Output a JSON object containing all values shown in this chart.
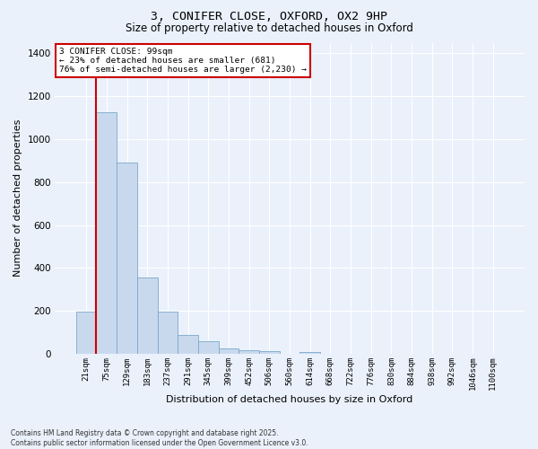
{
  "title_line1": "3, CONIFER CLOSE, OXFORD, OX2 9HP",
  "title_line2": "Size of property relative to detached houses in Oxford",
  "xlabel": "Distribution of detached houses by size in Oxford",
  "ylabel": "Number of detached properties",
  "categories": [
    "21sqm",
    "75sqm",
    "129sqm",
    "183sqm",
    "237sqm",
    "291sqm",
    "345sqm",
    "399sqm",
    "452sqm",
    "506sqm",
    "560sqm",
    "614sqm",
    "668sqm",
    "722sqm",
    "776sqm",
    "830sqm",
    "884sqm",
    "938sqm",
    "992sqm",
    "1046sqm",
    "1100sqm"
  ],
  "values": [
    195,
    1125,
    890,
    355,
    198,
    90,
    57,
    25,
    18,
    12,
    0,
    10,
    0,
    0,
    0,
    0,
    0,
    0,
    0,
    0,
    0
  ],
  "bar_color": "#c9d9ed",
  "bar_edge_color": "#7aa8cc",
  "property_line_color": "#cc0000",
  "property_line_x": 0.5,
  "annotation_text": "3 CONIFER CLOSE: 99sqm\n← 23% of detached houses are smaller (681)\n76% of semi-detached houses are larger (2,230) →",
  "annotation_box_color": "#cc0000",
  "ylim": [
    0,
    1450
  ],
  "yticks": [
    0,
    200,
    400,
    600,
    800,
    1000,
    1200,
    1400
  ],
  "bg_color": "#eaf1fb",
  "footer_text": "Contains HM Land Registry data © Crown copyright and database right 2025.\nContains public sector information licensed under the Open Government Licence v3.0.",
  "grid_color": "#ffffff"
}
